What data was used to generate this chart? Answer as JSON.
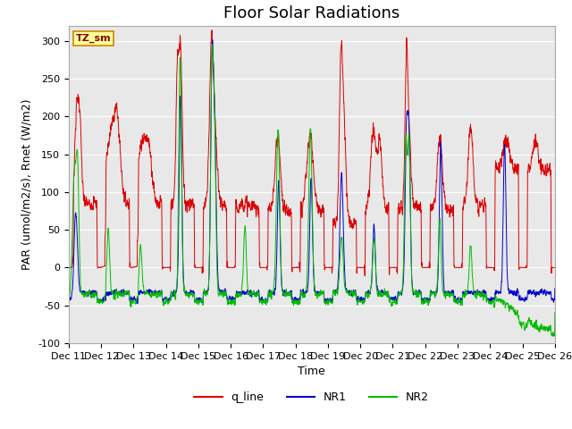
{
  "title": "Floor Solar Radiations",
  "ylabel": "PAR (umol/m2/s), Rnet (W/m2)",
  "xlabel": "Time",
  "ylim": [
    -100,
    320
  ],
  "yticks": [
    -100,
    -50,
    0,
    50,
    100,
    150,
    200,
    250,
    300
  ],
  "xtick_labels": [
    "Dec 11",
    "Dec 12",
    "Dec 13",
    "Dec 14",
    "Dec 15",
    "Dec 16",
    "Dec 17",
    "Dec 18",
    "Dec 19",
    "Dec 20",
    "Dec 21",
    "Dec 22",
    "Dec 23",
    "Dec 24",
    "Dec 25",
    "Dec 26"
  ],
  "colors": {
    "q_line": "#dd0000",
    "NR1": "#0000cc",
    "NR2": "#00bb00",
    "bg_plot": "#e8e8e8",
    "bg_fig": "#ffffff",
    "annotation_bg": "#ffff99",
    "annotation_border": "#cc8800"
  },
  "legend_labels": [
    "q_line",
    "NR1",
    "NR2"
  ],
  "annotation_text": "TZ_sm",
  "grid_color": "#ffffff",
  "title_fontsize": 13,
  "axis_fontsize": 9,
  "tick_fontsize": 8
}
